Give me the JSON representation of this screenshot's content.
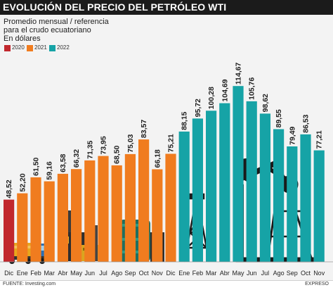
{
  "title": "EVOLUCIÓN DEL PRECIO DEL PETRÓLEO WTI",
  "subtitle_lines": [
    "Promedio mensual / referencia",
    "para el crudo ecuatoriano",
    "En dólares"
  ],
  "legend": [
    {
      "label": "2020",
      "color": "#c1272d"
    },
    {
      "label": "2021",
      "color": "#f07c1f"
    },
    {
      "label": "2022",
      "color": "#16a3a6"
    }
  ],
  "source": "FUENTE: Investing.com",
  "credit": "EXPRESO",
  "chart_data": {
    "type": "bar",
    "title": "EVOLUCIÓN DEL PRECIO DEL PETRÓLEO WTI",
    "ylabel": "",
    "ylim": [
      0,
      120
    ],
    "categories": [
      "Dic",
      "Ene",
      "Feb",
      "Mar",
      "Abr",
      "May",
      "Jun",
      "Jul",
      "Ago",
      "Sep",
      "Oct",
      "Nov",
      "Dic",
      "Ene",
      "Feb",
      "Mar",
      "Abr",
      "May",
      "Jun",
      "Jul",
      "Ago",
      "Sep",
      "Oct",
      "Nov"
    ],
    "values": [
      48.52,
      52.2,
      61.5,
      59.16,
      63.58,
      66.32,
      71.35,
      73.95,
      68.5,
      75.03,
      83.57,
      66.18,
      75.21,
      88.15,
      95.72,
      100.28,
      104.69,
      114.67,
      105.76,
      98.62,
      89.55,
      79.49,
      86.53,
      77.21
    ],
    "labels": [
      "48,52",
      "52,20",
      "61,50",
      "59,16",
      "63,58",
      "66,32",
      "71,35",
      "73,95",
      "68,50",
      "75,03",
      "83,57",
      "66,18",
      "75,21",
      "88,15",
      "95,72",
      "100,28",
      "104,69",
      "114,67",
      "105,76",
      "98,62",
      "89,55",
      "79,49",
      "86,53",
      "77,21"
    ],
    "series_year": [
      "2020",
      "2021",
      "2021",
      "2021",
      "2021",
      "2021",
      "2021",
      "2021",
      "2021",
      "2021",
      "2021",
      "2021",
      "2021",
      "2022",
      "2022",
      "2022",
      "2022",
      "2022",
      "2022",
      "2022",
      "2022",
      "2022",
      "2022",
      "2022"
    ],
    "grid": false,
    "legend_position": "top-left"
  }
}
